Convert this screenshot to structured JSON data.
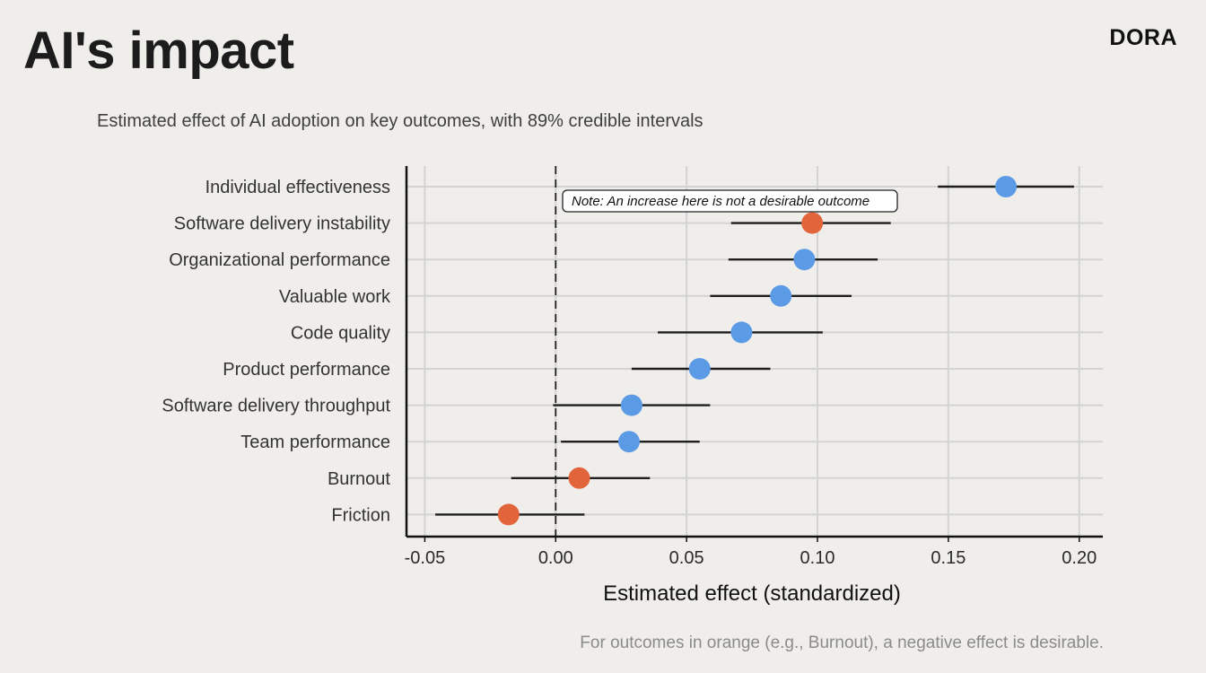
{
  "header": {
    "title": "AI's impact",
    "brand": "DORA"
  },
  "subtitle": "Estimated effect of AI adoption on key outcomes, with 89% credible intervals",
  "footnote": "For outcomes in orange (e.g., Burnout), a negative effect is desirable.",
  "colors": {
    "desirable_increase": "#5b9be6",
    "desirable_decrease": "#e2643a",
    "interval": "#1e1e1e",
    "grid": "#d3d3d3"
  },
  "chart_data": {
    "type": "scatter",
    "title": "Estimated effect of AI adoption on key outcomes, with 89% credible intervals",
    "xlabel": "Estimated effect (standardized)",
    "ylabel": "",
    "xlim": [
      -0.057,
      0.209
    ],
    "xticks": [
      -0.05,
      0.0,
      0.05,
      0.1,
      0.15,
      0.2
    ],
    "xtick_labels": [
      "-0.05",
      "0.00",
      "0.05",
      "0.10",
      "0.15",
      "0.20"
    ],
    "reference_line": 0.0,
    "grid": true,
    "annotation": "Note: An increase here is not a desirable outcome",
    "series": [
      {
        "name": "Individual effectiveness",
        "estimate": 0.172,
        "low": 0.146,
        "high": 0.198,
        "polarity": "increase"
      },
      {
        "name": "Software delivery instability",
        "estimate": 0.098,
        "low": 0.067,
        "high": 0.128,
        "polarity": "decrease"
      },
      {
        "name": "Organizational performance",
        "estimate": 0.095,
        "low": 0.066,
        "high": 0.123,
        "polarity": "increase"
      },
      {
        "name": "Valuable work",
        "estimate": 0.086,
        "low": 0.059,
        "high": 0.113,
        "polarity": "increase"
      },
      {
        "name": "Code quality",
        "estimate": 0.071,
        "low": 0.039,
        "high": 0.102,
        "polarity": "increase"
      },
      {
        "name": "Product performance",
        "estimate": 0.055,
        "low": 0.029,
        "high": 0.082,
        "polarity": "increase"
      },
      {
        "name": "Software delivery throughput",
        "estimate": 0.029,
        "low": -0.001,
        "high": 0.059,
        "polarity": "increase"
      },
      {
        "name": "Team performance",
        "estimate": 0.028,
        "low": 0.002,
        "high": 0.055,
        "polarity": "increase"
      },
      {
        "name": "Burnout",
        "estimate": 0.009,
        "low": -0.017,
        "high": 0.036,
        "polarity": "decrease"
      },
      {
        "name": "Friction",
        "estimate": -0.018,
        "low": -0.046,
        "high": 0.011,
        "polarity": "decrease"
      }
    ]
  }
}
